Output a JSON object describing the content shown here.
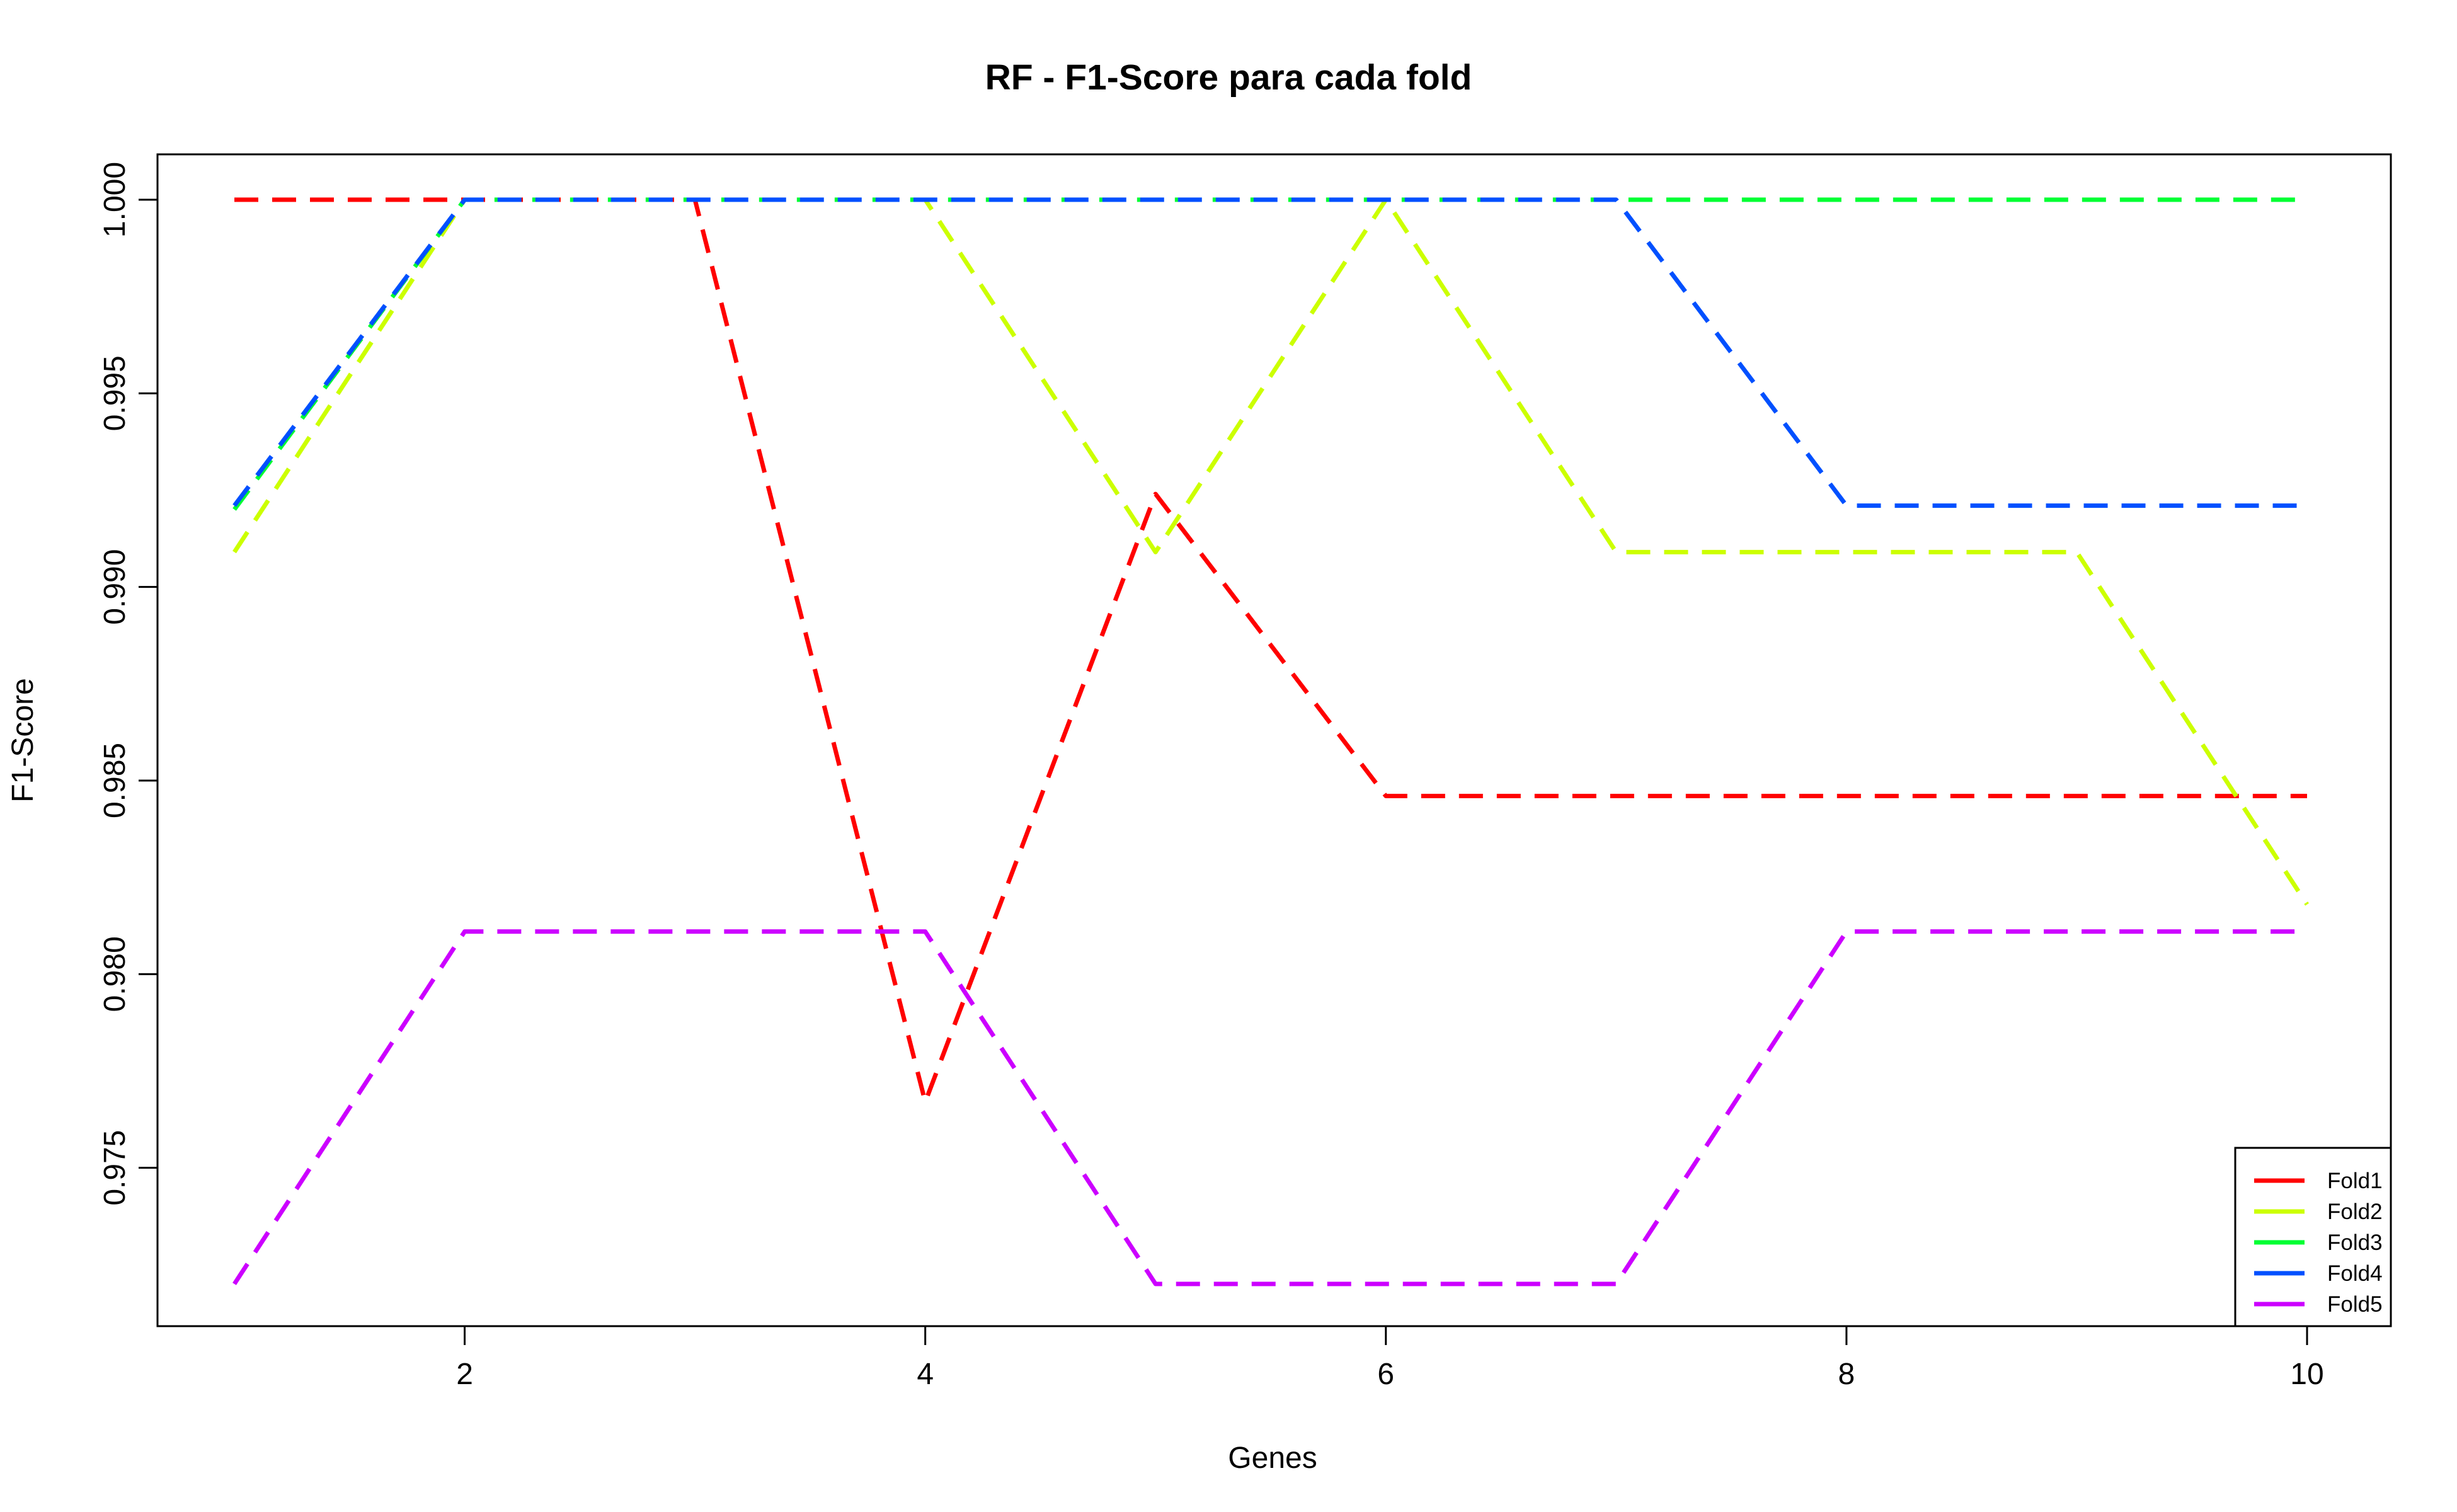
{
  "chart_data": {
    "type": "line",
    "title": "RF - F1-Score para cada fold",
    "xlabel": "Genes",
    "ylabel": "F1-Score",
    "xlim": [
      1,
      10
    ],
    "ylim": [
      0.972,
      1.0
    ],
    "x": [
      1,
      2,
      3,
      4,
      5,
      6,
      7,
      8,
      9,
      10
    ],
    "xticks": [
      "2",
      "4",
      "6",
      "8",
      "10"
    ],
    "yticks": [
      "0.975",
      "0.980",
      "0.985",
      "0.990",
      "0.995",
      "1.000"
    ],
    "grid": false,
    "legend_position": "bottom-right",
    "line_style": "dashed",
    "series": [
      {
        "name": "Fold1",
        "color": "#ff0000",
        "values": [
          1.0,
          1.0,
          1.0,
          0.9767,
          0.9924,
          0.9846,
          0.9846,
          0.9846,
          0.9846,
          0.9846
        ]
      },
      {
        "name": "Fold2",
        "color": "#ccff00",
        "values": [
          0.9909,
          1.0,
          1.0,
          1.0,
          0.9909,
          1.0,
          0.9909,
          0.9909,
          0.9909,
          0.9818
        ]
      },
      {
        "name": "Fold3",
        "color": "#00ff33",
        "values": [
          0.992,
          1.0,
          1.0,
          1.0,
          1.0,
          1.0,
          1.0,
          1.0,
          1.0,
          1.0
        ]
      },
      {
        "name": "Fold4",
        "color": "#0050ff",
        "values": [
          0.9921,
          1.0,
          1.0,
          1.0,
          1.0,
          1.0,
          1.0,
          0.9921,
          0.9921,
          0.9921
        ]
      },
      {
        "name": "Fold5",
        "color": "#cc00ff",
        "values": [
          0.972,
          0.9811,
          0.9811,
          0.9811,
          0.972,
          0.972,
          0.972,
          0.9811,
          0.9811,
          0.9811
        ]
      }
    ]
  }
}
